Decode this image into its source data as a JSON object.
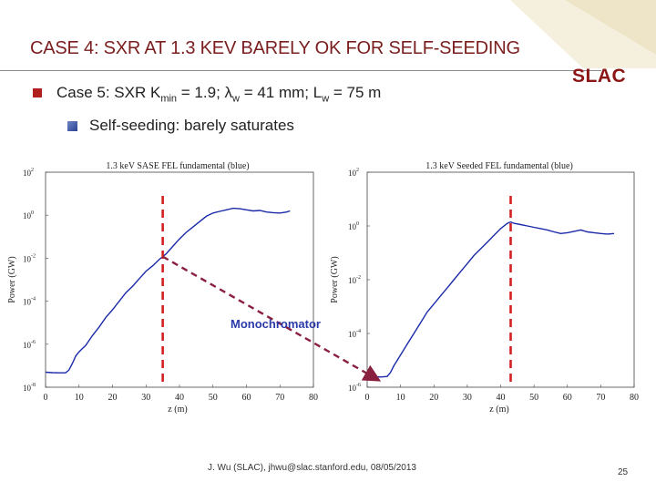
{
  "slide": {
    "title": "CASE 4: SXR AT 1.3 KEV BARELY OK FOR SELF-SEEDING",
    "logo": "SLAC",
    "bullet1": {
      "prefix": "Case 5: SXR K",
      "k_sub": "min",
      "k_value": " = 1.9; ",
      "lambda": "λ",
      "lambda_sub": "w",
      "lambda_value": " = 41 mm; L",
      "l_sub": "w",
      "l_value": " = 75 m"
    },
    "bullet2": "Self-seeding: barely saturates",
    "annotation": "Monochromator",
    "footer": "J. Wu (SLAC), jhwu@slac.stanford.edu, 08/05/2013",
    "page_number": "25"
  },
  "chart_data": [
    {
      "type": "line",
      "title": "1.3 keV SASE FEL fundamental (blue)",
      "xlabel": "z (m)",
      "ylabel": "Power (GW)",
      "xlim": [
        0,
        80
      ],
      "ylim": [
        -8,
        2
      ],
      "log_y": true,
      "y_ticks": [
        {
          "base": "10",
          "exp": "2"
        },
        {
          "base": "10",
          "exp": "0"
        },
        {
          "base": "10",
          "exp": "-2"
        },
        {
          "base": "10",
          "exp": "-4"
        },
        {
          "base": "10",
          "exp": "-6"
        },
        {
          "base": "10",
          "exp": "-8"
        }
      ],
      "x_ticks": [
        "0",
        "10",
        "20",
        "30",
        "40",
        "50",
        "60",
        "70",
        "80"
      ],
      "series": [
        {
          "color": "#1a2aa8",
          "points": [
            [
              0,
              -7.3
            ],
            [
              2,
              -7.32
            ],
            [
              4,
              -7.33
            ],
            [
              6,
              -7.33
            ],
            [
              7,
              -7.2
            ],
            [
              8,
              -6.9
            ],
            [
              9,
              -6.55
            ],
            [
              10,
              -6.35
            ],
            [
              12,
              -6.05
            ],
            [
              14,
              -5.6
            ],
            [
              16,
              -5.2
            ],
            [
              18,
              -4.75
            ],
            [
              20,
              -4.4
            ],
            [
              22,
              -4.0
            ],
            [
              24,
              -3.6
            ],
            [
              26,
              -3.3
            ],
            [
              28,
              -2.95
            ],
            [
              30,
              -2.6
            ],
            [
              32,
              -2.35
            ],
            [
              34,
              -2.05
            ],
            [
              36,
              -1.8
            ],
            [
              38,
              -1.45
            ],
            [
              40,
              -1.1
            ],
            [
              42,
              -0.8
            ],
            [
              44,
              -0.55
            ],
            [
              46,
              -0.3
            ],
            [
              48,
              -0.05
            ],
            [
              50,
              0.1
            ],
            [
              52,
              0.18
            ],
            [
              54,
              0.25
            ],
            [
              56,
              0.32
            ],
            [
              58,
              0.3
            ],
            [
              60,
              0.25
            ],
            [
              62,
              0.2
            ],
            [
              64,
              0.22
            ],
            [
              66,
              0.15
            ],
            [
              68,
              0.12
            ],
            [
              70,
              0.1
            ],
            [
              72,
              0.15
            ],
            [
              73,
              0.2
            ]
          ]
        }
      ],
      "marker_z": 35
    },
    {
      "type": "line",
      "title": "1.3 keV Seeded FEL fundamental (blue)",
      "xlabel": "z (m)",
      "ylabel": "Power (GW)",
      "xlim": [
        0,
        80
      ],
      "ylim": [
        -6,
        2
      ],
      "log_y": true,
      "y_ticks": [
        {
          "base": "10",
          "exp": "2"
        },
        {
          "base": "10",
          "exp": "0"
        },
        {
          "base": "10",
          "exp": "-2"
        },
        {
          "base": "10",
          "exp": "-4"
        },
        {
          "base": "10",
          "exp": "-6"
        }
      ],
      "x_ticks": [
        "0",
        "10",
        "20",
        "30",
        "40",
        "50",
        "60",
        "70",
        "80"
      ],
      "series": [
        {
          "color": "#1a2aa8",
          "points": [
            [
              0,
              -5.5
            ],
            [
              2,
              -5.6
            ],
            [
              4,
              -5.62
            ],
            [
              6,
              -5.6
            ],
            [
              7,
              -5.45
            ],
            [
              8,
              -5.2
            ],
            [
              9,
              -5.0
            ],
            [
              10,
              -4.8
            ],
            [
              12,
              -4.4
            ],
            [
              14,
              -4.0
            ],
            [
              16,
              -3.6
            ],
            [
              18,
              -3.2
            ],
            [
              20,
              -2.9
            ],
            [
              22,
              -2.6
            ],
            [
              24,
              -2.3
            ],
            [
              26,
              -2.0
            ],
            [
              28,
              -1.7
            ],
            [
              30,
              -1.4
            ],
            [
              32,
              -1.1
            ],
            [
              34,
              -0.85
            ],
            [
              36,
              -0.6
            ],
            [
              38,
              -0.35
            ],
            [
              40,
              -0.1
            ],
            [
              42,
              0.1
            ],
            [
              43,
              0.15
            ],
            [
              44,
              0.1
            ],
            [
              46,
              0.05
            ],
            [
              48,
              0.0
            ],
            [
              50,
              -0.05
            ],
            [
              52,
              -0.1
            ],
            [
              54,
              -0.15
            ],
            [
              56,
              -0.22
            ],
            [
              58,
              -0.28
            ],
            [
              60,
              -0.25
            ],
            [
              62,
              -0.2
            ],
            [
              64,
              -0.15
            ],
            [
              66,
              -0.22
            ],
            [
              68,
              -0.25
            ],
            [
              70,
              -0.28
            ],
            [
              72,
              -0.3
            ],
            [
              74,
              -0.28
            ]
          ]
        }
      ],
      "marker_z": 43
    }
  ]
}
